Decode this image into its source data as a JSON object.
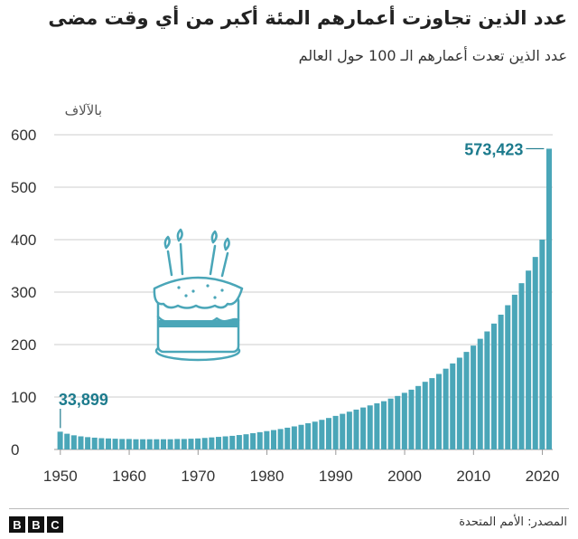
{
  "header": {
    "title": "عدد الذين تجاوزت أعمارهم المئة أكبر من أي وقت مضى",
    "subtitle": "عدد الذين تعدت أعمارهم الـ 100 حول العالم"
  },
  "footer": {
    "source": "المصدر: الأمم المتحدة",
    "logo": [
      "B",
      "B",
      "C"
    ]
  },
  "colors": {
    "bar": "#4aa6b8",
    "annotation": "#1d7b8d",
    "grid": "#cccccc",
    "axis_text": "#333333"
  },
  "chart_data": {
    "type": "bar",
    "ylabel": "بالآلاف",
    "ylim": [
      0,
      600
    ],
    "yticks": [
      0,
      100,
      200,
      300,
      400,
      500,
      600
    ],
    "xticks": [
      "1950",
      "1960",
      "1970",
      "1980",
      "1990",
      "2000",
      "2010",
      "2020"
    ],
    "x": [
      1950,
      1951,
      1952,
      1953,
      1954,
      1955,
      1956,
      1957,
      1958,
      1959,
      1960,
      1961,
      1962,
      1963,
      1964,
      1965,
      1966,
      1967,
      1968,
      1969,
      1970,
      1971,
      1972,
      1973,
      1974,
      1975,
      1976,
      1977,
      1978,
      1979,
      1980,
      1981,
      1982,
      1983,
      1984,
      1985,
      1986,
      1987,
      1988,
      1989,
      1990,
      1991,
      1992,
      1993,
      1994,
      1995,
      1996,
      1997,
      1998,
      1999,
      2000,
      2001,
      2002,
      2003,
      2004,
      2005,
      2006,
      2007,
      2008,
      2009,
      2010,
      2011,
      2012,
      2013,
      2014,
      2015,
      2016,
      2017,
      2018,
      2019,
      2020,
      2021
    ],
    "values": [
      33.9,
      30,
      27,
      25,
      23.5,
      22.5,
      21.5,
      21,
      20.5,
      20,
      20,
      19.5,
      19.5,
      19.5,
      19.5,
      19.5,
      19.5,
      20,
      20,
      20.5,
      21,
      22,
      23,
      24,
      25,
      26,
      27.5,
      29,
      31,
      33,
      35,
      37,
      39,
      41.5,
      44,
      47,
      50,
      53,
      56.5,
      60,
      64,
      68,
      72,
      76,
      80,
      84,
      88,
      92,
      97,
      102,
      108,
      114,
      121,
      129,
      136,
      144,
      154,
      164,
      175,
      186,
      198,
      211,
      225,
      240,
      257,
      275,
      295,
      317,
      341,
      367,
      400,
      573.4
    ],
    "annotations": [
      {
        "label": "33,899",
        "value": 33.899,
        "year": 1950
      },
      {
        "label": "573,423",
        "value": 573.423,
        "year": 2021
      }
    ],
    "grid": true
  }
}
